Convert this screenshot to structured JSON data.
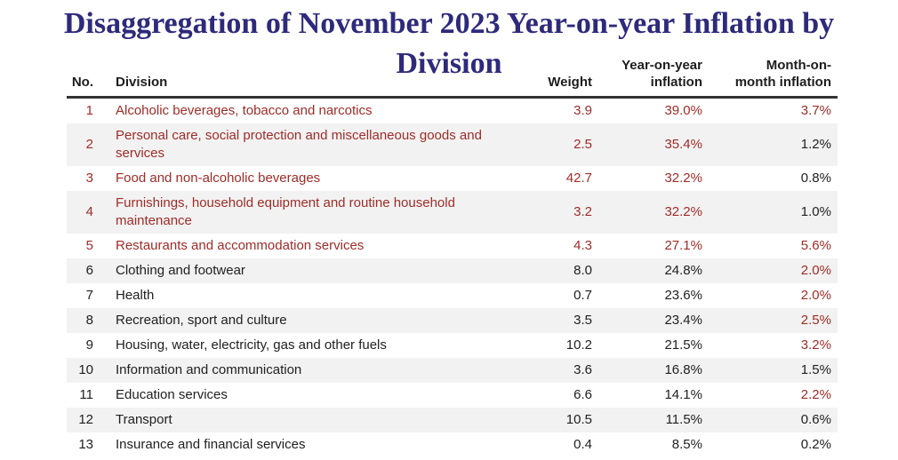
{
  "title": {
    "full": "Disaggregation of November 2023 Year-on-year Inflation by Division",
    "line1": "Disaggregation of November 2023 Year-on-year Inflation by",
    "line2": "Division"
  },
  "colors": {
    "title_indigo": "#2e2a7b",
    "highlight_red": "#9e2c28",
    "body_text": "#212121",
    "stripe_gray": "#f2f2f2",
    "header_rule": "#333333"
  },
  "table": {
    "columns": [
      {
        "key": "no",
        "label": "No."
      },
      {
        "key": "division",
        "label": "Division"
      },
      {
        "key": "weight",
        "label": "Weight"
      },
      {
        "key": "yoy",
        "label": "Year-on-year\ninflation"
      },
      {
        "key": "mom",
        "label": "Month-on-\nmonth inflation"
      }
    ],
    "rows": [
      {
        "no": "1",
        "division": "Alcoholic beverages, tobacco and narcotics",
        "weight": "3.9",
        "yoy": "39.0%",
        "mom": "3.7%",
        "row_red": true,
        "mom_red": true
      },
      {
        "no": "2",
        "division": "Personal care, social protection and miscellaneous goods and services",
        "weight": "2.5",
        "yoy": "35.4%",
        "mom": "1.2%",
        "row_red": true,
        "mom_red": false
      },
      {
        "no": "3",
        "division": "Food and non-alcoholic beverages",
        "weight": "42.7",
        "yoy": "32.2%",
        "mom": "0.8%",
        "row_red": true,
        "mom_red": false
      },
      {
        "no": "4",
        "division": "Furnishings, household equipment and routine household maintenance",
        "weight": "3.2",
        "yoy": "32.2%",
        "mom": "1.0%",
        "row_red": true,
        "mom_red": false
      },
      {
        "no": "5",
        "division": "Restaurants and accommodation services",
        "weight": "4.3",
        "yoy": "27.1%",
        "mom": "5.6%",
        "row_red": true,
        "mom_red": true
      },
      {
        "no": "6",
        "division": "Clothing and footwear",
        "weight": "8.0",
        "yoy": "24.8%",
        "mom": "2.0%",
        "row_red": false,
        "mom_red": true
      },
      {
        "no": "7",
        "division": "Health",
        "weight": "0.7",
        "yoy": "23.6%",
        "mom": "2.0%",
        "row_red": false,
        "mom_red": true
      },
      {
        "no": "8",
        "division": "Recreation, sport and culture",
        "weight": "3.5",
        "yoy": "23.4%",
        "mom": "2.5%",
        "row_red": false,
        "mom_red": true
      },
      {
        "no": "9",
        "division": "Housing, water, electricity, gas and other fuels",
        "weight": "10.2",
        "yoy": "21.5%",
        "mom": "3.2%",
        "row_red": false,
        "mom_red": true
      },
      {
        "no": "10",
        "division": "Information and communication",
        "weight": "3.6",
        "yoy": "16.8%",
        "mom": "1.5%",
        "row_red": false,
        "mom_red": false
      },
      {
        "no": "11",
        "division": "Education services",
        "weight": "6.6",
        "yoy": "14.1%",
        "mom": "2.2%",
        "row_red": false,
        "mom_red": true
      },
      {
        "no": "12",
        "division": "Transport",
        "weight": "10.5",
        "yoy": "11.5%",
        "mom": "0.6%",
        "row_red": false,
        "mom_red": false
      },
      {
        "no": "13",
        "division": "Insurance and financial services",
        "weight": "0.4",
        "yoy": "8.5%",
        "mom": "0.2%",
        "row_red": false,
        "mom_red": false
      }
    ],
    "red_highlighted_row_numbers": [
      1,
      2,
      3,
      4,
      5
    ],
    "red_mom_row_numbers": [
      1,
      5,
      6,
      7,
      8,
      9,
      11
    ]
  },
  "chart_data": {
    "type": "table",
    "title": "Disaggregation of November 2023 Year-on-year Inflation by Division",
    "columns": [
      "No.",
      "Division",
      "Weight",
      "Year-on-year inflation",
      "Month-on-month inflation"
    ],
    "percent_columns": [
      "Year-on-year inflation",
      "Month-on-month inflation"
    ],
    "rows": [
      [
        1,
        "Alcoholic beverages, tobacco and narcotics",
        3.9,
        39.0,
        3.7
      ],
      [
        2,
        "Personal care, social protection and miscellaneous goods and services",
        2.5,
        35.4,
        1.2
      ],
      [
        3,
        "Food and non-alcoholic beverages",
        42.7,
        32.2,
        0.8
      ],
      [
        4,
        "Furnishings, household equipment and routine household maintenance",
        3.2,
        32.2,
        1.0
      ],
      [
        5,
        "Restaurants and accommodation services",
        4.3,
        27.1,
        5.6
      ],
      [
        6,
        "Clothing and footwear",
        8.0,
        24.8,
        2.0
      ],
      [
        7,
        "Health",
        0.7,
        23.6,
        2.0
      ],
      [
        8,
        "Recreation, sport and culture",
        3.5,
        23.4,
        2.5
      ],
      [
        9,
        "Housing, water, electricity, gas and other fuels",
        10.2,
        21.5,
        3.2
      ],
      [
        10,
        "Information and communication",
        3.6,
        16.8,
        1.5
      ],
      [
        11,
        "Education services",
        6.6,
        14.1,
        2.2
      ],
      [
        12,
        "Transport",
        10.5,
        11.5,
        0.6
      ],
      [
        13,
        "Insurance and financial services",
        0.4,
        8.5,
        0.2
      ]
    ]
  }
}
